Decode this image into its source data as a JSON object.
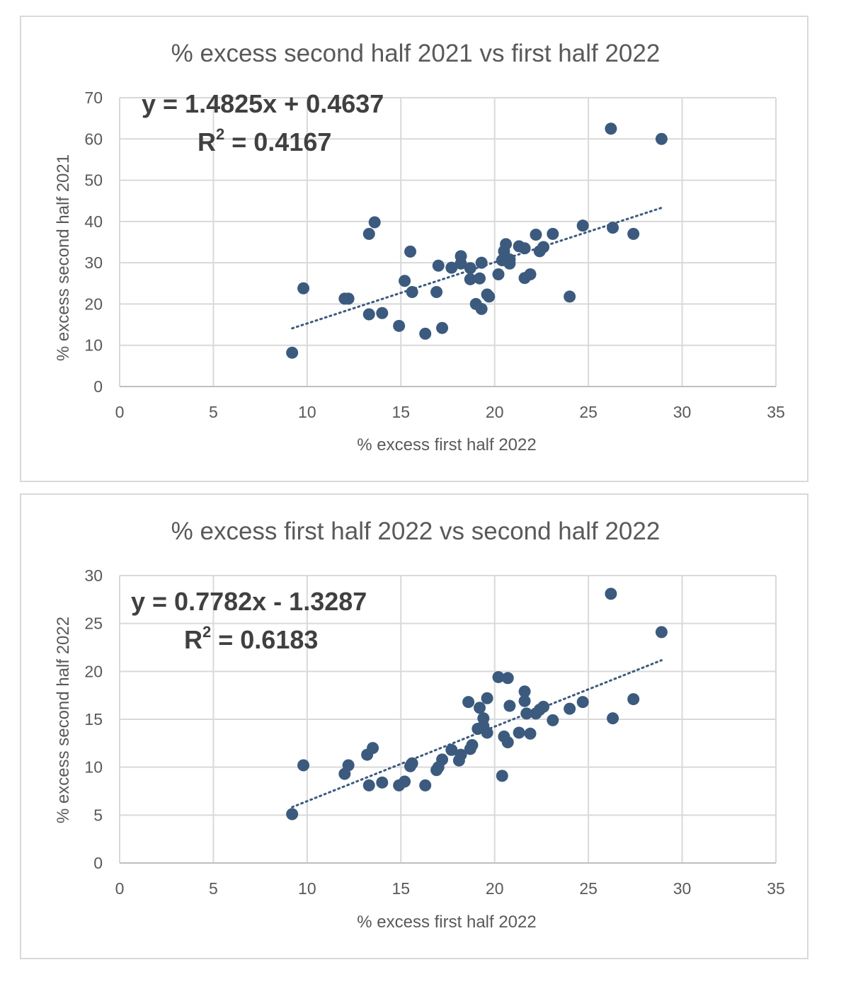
{
  "chart_data": [
    {
      "type": "scatter",
      "title": "% excess second half 2021 vs first half 2022",
      "xlabel": "% excess first half 2022",
      "ylabel": "% excess second half 2021",
      "xlim": [
        0,
        35
      ],
      "ylim": [
        0,
        70
      ],
      "x_ticks": [
        "0",
        "5",
        "10",
        "15",
        "20",
        "25",
        "30",
        "35"
      ],
      "y_ticks": [
        "0",
        "10",
        "20",
        "30",
        "40",
        "50",
        "60",
        "70"
      ],
      "grid": true,
      "marker_color": "#3b5a7e",
      "trendline": {
        "slope": 1.4825,
        "intercept": 0.4637,
        "x_range": [
          9.2,
          28.9
        ],
        "style": "dotted"
      },
      "equation_text": "y = 1.4825x + 0.4637",
      "r2_label": "R",
      "r2_sup": "2",
      "r2_value_text": " = 0.4167",
      "points": [
        {
          "x": 9.2,
          "y": 8.2
        },
        {
          "x": 9.8,
          "y": 23.8
        },
        {
          "x": 12.0,
          "y": 21.3
        },
        {
          "x": 12.2,
          "y": 21.3
        },
        {
          "x": 13.3,
          "y": 37.0
        },
        {
          "x": 13.6,
          "y": 39.8
        },
        {
          "x": 13.3,
          "y": 17.5
        },
        {
          "x": 14.0,
          "y": 17.8
        },
        {
          "x": 14.9,
          "y": 14.7
        },
        {
          "x": 15.2,
          "y": 25.6
        },
        {
          "x": 15.5,
          "y": 32.7
        },
        {
          "x": 15.6,
          "y": 22.9
        },
        {
          "x": 16.3,
          "y": 12.8
        },
        {
          "x": 16.9,
          "y": 22.9
        },
        {
          "x": 17.0,
          "y": 29.3
        },
        {
          "x": 17.2,
          "y": 14.2
        },
        {
          "x": 17.7,
          "y": 28.8
        },
        {
          "x": 18.2,
          "y": 31.6
        },
        {
          "x": 18.2,
          "y": 29.8
        },
        {
          "x": 18.7,
          "y": 28.7
        },
        {
          "x": 18.7,
          "y": 26.0
        },
        {
          "x": 19.2,
          "y": 26.2
        },
        {
          "x": 19.0,
          "y": 20.0
        },
        {
          "x": 19.3,
          "y": 18.8
        },
        {
          "x": 19.3,
          "y": 30.0
        },
        {
          "x": 19.6,
          "y": 22.3
        },
        {
          "x": 19.7,
          "y": 21.8
        },
        {
          "x": 20.2,
          "y": 27.2
        },
        {
          "x": 20.4,
          "y": 30.6
        },
        {
          "x": 20.5,
          "y": 32.8
        },
        {
          "x": 20.6,
          "y": 34.5
        },
        {
          "x": 20.8,
          "y": 29.8
        },
        {
          "x": 20.8,
          "y": 30.8
        },
        {
          "x": 21.3,
          "y": 34.0
        },
        {
          "x": 21.6,
          "y": 33.5
        },
        {
          "x": 21.6,
          "y": 26.3
        },
        {
          "x": 21.9,
          "y": 27.2
        },
        {
          "x": 22.2,
          "y": 36.8
        },
        {
          "x": 22.4,
          "y": 32.8
        },
        {
          "x": 22.6,
          "y": 33.8
        },
        {
          "x": 23.1,
          "y": 37.0
        },
        {
          "x": 24.0,
          "y": 21.8
        },
        {
          "x": 24.7,
          "y": 39.0
        },
        {
          "x": 26.2,
          "y": 62.5
        },
        {
          "x": 26.3,
          "y": 38.5
        },
        {
          "x": 27.4,
          "y": 37.0
        },
        {
          "x": 28.9,
          "y": 60.0
        }
      ]
    },
    {
      "type": "scatter",
      "title": "% excess first half 2022 vs second half 2022",
      "xlabel": "% excess first half 2022",
      "ylabel": "% excess second half 2022",
      "xlim": [
        0,
        35
      ],
      "ylim": [
        0,
        30
      ],
      "x_ticks": [
        "0",
        "5",
        "10",
        "15",
        "20",
        "25",
        "30",
        "35"
      ],
      "y_ticks": [
        "0",
        "5",
        "10",
        "15",
        "20",
        "25",
        "30"
      ],
      "grid": true,
      "marker_color": "#3b5a7e",
      "trendline": {
        "slope": 0.7782,
        "intercept": -1.3287,
        "x_range": [
          9.2,
          28.9
        ],
        "style": "dotted"
      },
      "equation_text": "y = 0.7782x - 1.3287",
      "r2_label": "R",
      "r2_sup": "2",
      "r2_value_text": " = 0.6183",
      "points": [
        {
          "x": 9.2,
          "y": 5.1
        },
        {
          "x": 9.8,
          "y": 10.2
        },
        {
          "x": 12.0,
          "y": 9.3
        },
        {
          "x": 12.2,
          "y": 10.2
        },
        {
          "x": 13.2,
          "y": 11.3
        },
        {
          "x": 13.5,
          "y": 12.0
        },
        {
          "x": 13.3,
          "y": 8.1
        },
        {
          "x": 14.0,
          "y": 8.4
        },
        {
          "x": 14.9,
          "y": 8.1
        },
        {
          "x": 15.2,
          "y": 8.5
        },
        {
          "x": 15.5,
          "y": 10.1
        },
        {
          "x": 15.6,
          "y": 10.4
        },
        {
          "x": 16.3,
          "y": 8.1
        },
        {
          "x": 16.9,
          "y": 9.7
        },
        {
          "x": 17.0,
          "y": 10.0
        },
        {
          "x": 17.2,
          "y": 10.8
        },
        {
          "x": 17.7,
          "y": 11.8
        },
        {
          "x": 18.1,
          "y": 10.7
        },
        {
          "x": 18.2,
          "y": 11.3
        },
        {
          "x": 18.7,
          "y": 11.9
        },
        {
          "x": 18.8,
          "y": 12.3
        },
        {
          "x": 18.6,
          "y": 16.8
        },
        {
          "x": 19.1,
          "y": 14.0
        },
        {
          "x": 19.2,
          "y": 16.2
        },
        {
          "x": 19.4,
          "y": 15.1
        },
        {
          "x": 19.4,
          "y": 14.3
        },
        {
          "x": 19.6,
          "y": 13.6
        },
        {
          "x": 19.6,
          "y": 17.2
        },
        {
          "x": 20.2,
          "y": 19.4
        },
        {
          "x": 20.4,
          "y": 9.1
        },
        {
          "x": 20.5,
          "y": 13.2
        },
        {
          "x": 20.7,
          "y": 12.6
        },
        {
          "x": 20.7,
          "y": 19.3
        },
        {
          "x": 20.8,
          "y": 16.4
        },
        {
          "x": 21.3,
          "y": 13.6
        },
        {
          "x": 21.6,
          "y": 17.9
        },
        {
          "x": 21.6,
          "y": 16.9
        },
        {
          "x": 21.7,
          "y": 15.6
        },
        {
          "x": 21.9,
          "y": 13.5
        },
        {
          "x": 22.2,
          "y": 15.6
        },
        {
          "x": 22.4,
          "y": 16.0
        },
        {
          "x": 22.6,
          "y": 16.3
        },
        {
          "x": 23.1,
          "y": 14.9
        },
        {
          "x": 24.0,
          "y": 16.1
        },
        {
          "x": 24.7,
          "y": 16.8
        },
        {
          "x": 26.2,
          "y": 28.1
        },
        {
          "x": 26.3,
          "y": 15.1
        },
        {
          "x": 27.4,
          "y": 17.1
        },
        {
          "x": 28.9,
          "y": 24.1
        }
      ]
    }
  ]
}
